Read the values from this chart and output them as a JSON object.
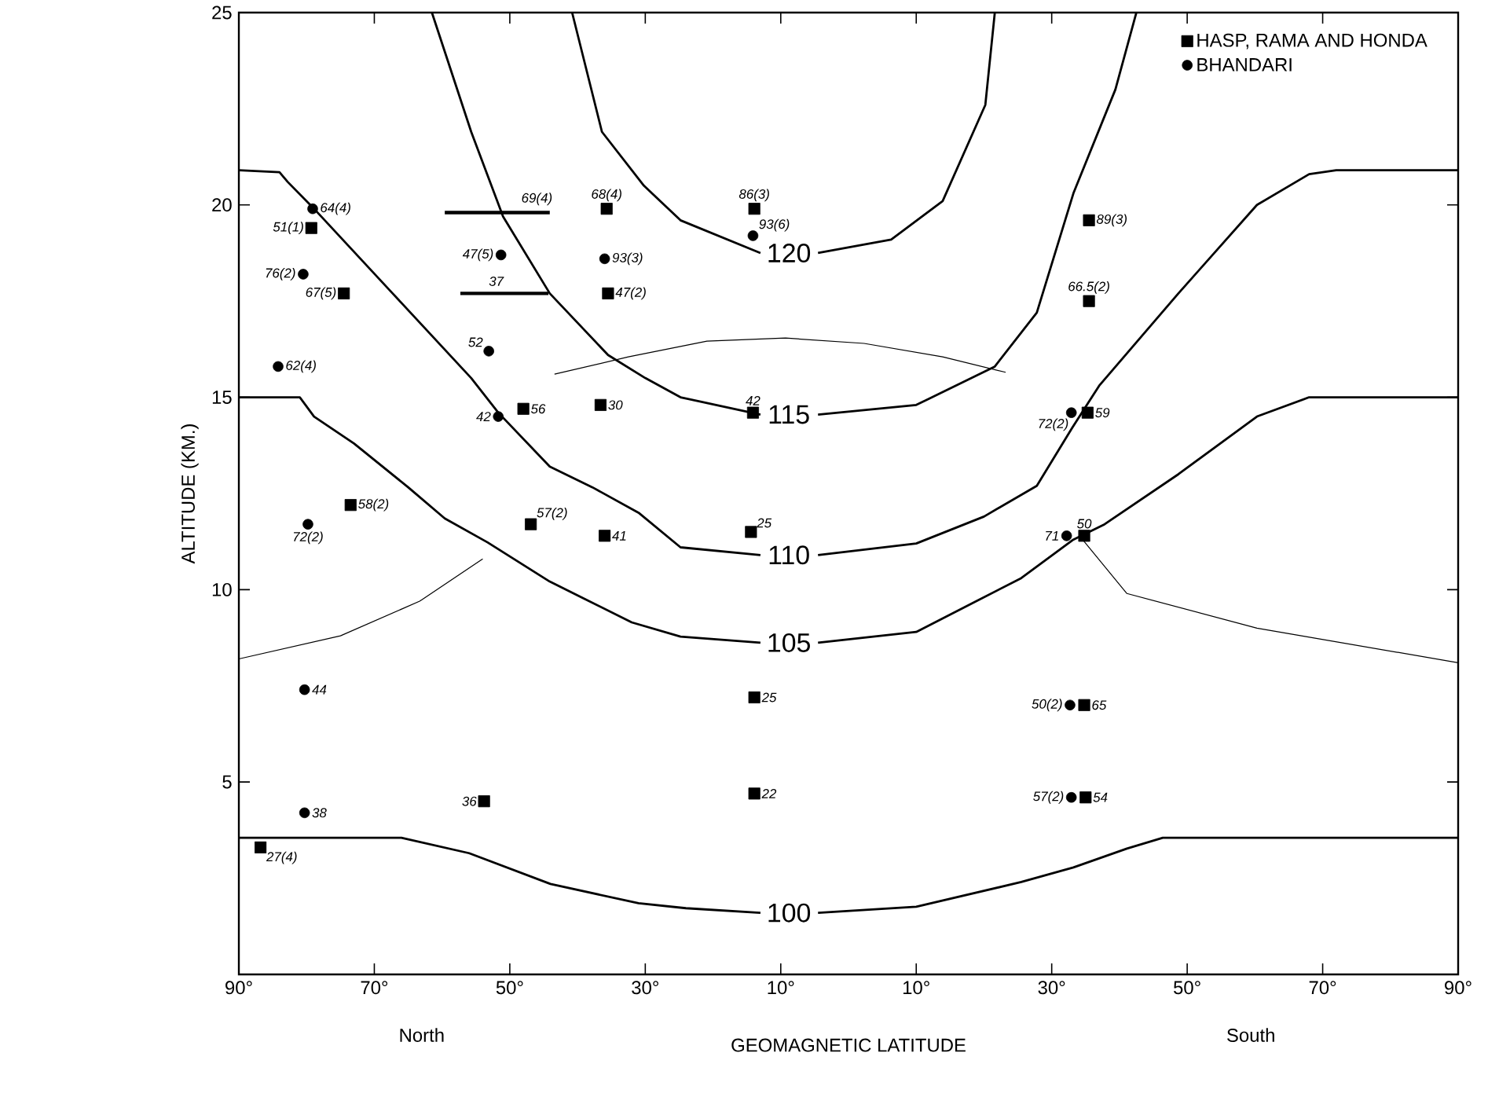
{
  "chart_data": {
    "type": "scatter",
    "xlabel": "GEOMAGNETIC LATITUDE",
    "ylabel": "ALTITUDE (KM.)",
    "xlim": [
      -90,
      90
    ],
    "ylim": [
      0,
      25
    ],
    "xticks": [
      {
        "value": -90,
        "label": "90°"
      },
      {
        "value": -70,
        "label": "70°"
      },
      {
        "value": -50,
        "label": "50°"
      },
      {
        "value": -30,
        "label": "30°"
      },
      {
        "value": -10,
        "label": "10°"
      },
      {
        "value": 10,
        "label": "10°"
      },
      {
        "value": 30,
        "label": "30°"
      },
      {
        "value": 50,
        "label": "50°"
      },
      {
        "value": 70,
        "label": "70°"
      },
      {
        "value": 90,
        "label": "90°"
      }
    ],
    "yticks": [
      5,
      10,
      15,
      20,
      25
    ],
    "legend": "top right",
    "annotations": [
      "100",
      "105",
      "110",
      "115",
      "120",
      {
        "text": "51(1)",
        "x": -79.3,
        "y": 19.4
      },
      {
        "text": "67(5)",
        "x": -74.5,
        "y": 17.7
      },
      {
        "text": "68(4)",
        "x": -35.7,
        "y": 19.9
      },
      {
        "text": "47(2)",
        "x": -35.5,
        "y": 17.7
      },
      {
        "text": "56",
        "x": -48.0,
        "y": 14.7
      },
      {
        "text": "30",
        "x": -36.6,
        "y": 14.8
      },
      {
        "text": "86(3)",
        "x": -13.9,
        "y": 19.9
      },
      {
        "text": "42",
        "x": -14.1,
        "y": 14.6
      },
      {
        "text": "89(3)",
        "x": 35.5,
        "y": 19.6
      },
      {
        "text": "66.5(2)",
        "x": 35.5,
        "y": 17.5
      },
      {
        "text": "59",
        "x": 35.3,
        "y": 14.6
      },
      {
        "text": "58(2)",
        "x": -73.5,
        "y": 12.2
      },
      {
        "text": "57(2)",
        "x": -46.9,
        "y": 11.7
      },
      {
        "text": "41",
        "x": -36.0,
        "y": 11.4
      },
      {
        "text": "27(4)",
        "x": -86.8,
        "y": 3.3
      },
      {
        "text": "36",
        "x": -53.8,
        "y": 4.5
      },
      {
        "text": "25",
        "x": -14.4,
        "y": 11.5
      },
      {
        "text": "25",
        "x": -13.9,
        "y": 7.2
      },
      {
        "text": "22",
        "x": -13.9,
        "y": 4.7
      },
      {
        "text": "50",
        "x": 34.8,
        "y": 11.4
      },
      {
        "text": "65",
        "x": 34.8,
        "y": 7.0
      },
      {
        "text": "54",
        "x": 35.0,
        "y": 4.6
      },
      {
        "text": "64(4)",
        "x": -79.1,
        "y": 19.9
      },
      {
        "text": "76(2)",
        "x": -80.5,
        "y": 18.2
      },
      {
        "text": "47(5)",
        "x": -51.3,
        "y": 18.7
      },
      {
        "text": "93(3)",
        "x": -36.0,
        "y": 18.6
      },
      {
        "text": "52",
        "x": -53.1,
        "y": 16.2
      },
      {
        "text": "62(4)",
        "x": -84.2,
        "y": 15.8
      },
      {
        "text": "42",
        "x": -51.7,
        "y": 14.5
      },
      {
        "text": "93(6)",
        "x": -14.1,
        "y": 19.2
      },
      {
        "text": "72(2)",
        "x": 32.9,
        "y": 14.6
      },
      {
        "text": "72(2)",
        "x": -79.8,
        "y": 11.7
      },
      {
        "text": "44",
        "x": -80.3,
        "y": 7.4
      },
      {
        "text": "38",
        "x": -80.3,
        "y": 4.2
      },
      {
        "text": "71",
        "x": 32.2,
        "y": 11.4
      },
      {
        "text": "50(2)",
        "x": 32.7,
        "y": 7.0
      },
      {
        "text": "57(2)",
        "x": 32.9,
        "y": 4.6
      },
      {
        "text": "69(4)",
        "x": -46,
        "y": 19.8
      },
      {
        "text": "37",
        "x": -52,
        "y": 17.7
      },
      "North",
      "South"
    ],
    "series": [
      {
        "name": "HASP, RAMA AND HONDA",
        "marker": "square",
        "color": "#000000",
        "x": [
          -79.3,
          -74.5,
          -35.7,
          -35.5,
          -48.0,
          -36.6,
          -13.9,
          -14.1,
          35.5,
          35.5,
          35.3,
          -73.5,
          -46.9,
          -36.0,
          -86.8,
          -53.8,
          -14.4,
          -13.9,
          -13.9,
          34.8,
          34.8,
          35.0
        ],
        "values": [
          19.4,
          17.7,
          19.9,
          17.7,
          14.7,
          14.8,
          19.9,
          14.6,
          19.6,
          17.5,
          14.6,
          12.2,
          11.7,
          11.4,
          3.3,
          4.5,
          11.5,
          7.2,
          4.7,
          11.4,
          7.0,
          4.6
        ]
      },
      {
        "name": "BHANDARI",
        "marker": "circle",
        "color": "#000000",
        "x": [
          -79.1,
          -80.5,
          -51.3,
          -36.0,
          -53.1,
          -84.2,
          -51.7,
          -14.1,
          32.9,
          -79.8,
          -80.3,
          -80.3,
          32.2,
          32.7,
          32.9
        ],
        "values": [
          19.9,
          18.2,
          18.7,
          18.6,
          16.2,
          15.8,
          14.5,
          19.2,
          14.6,
          11.7,
          7.4,
          4.2,
          11.4,
          7.0,
          4.6
        ]
      },
      {
        "type": "line",
        "color": "#000000",
        "x": [
          -90,
          -66,
          -56,
          -44,
          -31,
          -24,
          -13,
          -8.8,
          -4.5,
          10,
          25.5,
          33.2,
          41.1,
          46.4,
          90
        ],
        "values": [
          3.55,
          3.55,
          3.15,
          2.35,
          1.85,
          1.72,
          1.6,
          null,
          1.6,
          1.76,
          2.4,
          2.78,
          3.27,
          3.55,
          3.55
        ]
      },
      {
        "type": "line",
        "color": "#000000",
        "x": [
          -90,
          -81,
          -78.9,
          -73,
          -65,
          -59.6,
          -53.3,
          -44.1,
          -32,
          -24.8,
          -13,
          -8.8,
          -4.5,
          10,
          25.5,
          33.2,
          37.8,
          48.7,
          60.3,
          68,
          90
        ],
        "values": [
          15,
          15,
          14.5,
          13.8,
          12.66,
          11.85,
          11.23,
          10.21,
          9.15,
          8.78,
          8.62,
          null,
          8.62,
          8.9,
          10.3,
          11.3,
          11.7,
          13.0,
          14.5,
          15,
          15
        ]
      },
      {
        "type": "line",
        "color": "#000000",
        "x": [
          -90,
          -84,
          -82.8,
          -78.9,
          -67.3,
          -55.7,
          -51.7,
          -44.1,
          -37.8,
          -31,
          -24.8,
          -13,
          -8.8,
          -4.5,
          10,
          20,
          27.8,
          33,
          37,
          48.7,
          60.3,
          68,
          72,
          90
        ],
        "values": [
          20.9,
          20.85,
          20.6,
          19.9,
          17.7,
          15.5,
          14.6,
          13.2,
          12.66,
          12.0,
          11.1,
          10.9,
          null,
          10.9,
          11.2,
          11.9,
          12.7,
          14.2,
          15.3,
          17.7,
          20.0,
          20.8,
          20.9,
          20.9
        ]
      },
      {
        "type": "line",
        "color": "#000000",
        "x": [
          -61.5,
          -55.7,
          -51,
          -44.1,
          -35.5,
          -30,
          -24.8,
          -13,
          -8.8,
          -4.5,
          10,
          21.6,
          27.8,
          33.2,
          39.4,
          42.5
        ],
        "values": [
          25,
          21.9,
          19.7,
          17.7,
          16.1,
          15.5,
          15.0,
          14.55,
          null,
          14.55,
          14.8,
          15.8,
          17.2,
          20.3,
          23.0,
          25
        ]
      },
      {
        "type": "line",
        "color": "#000000",
        "x": [
          -40.8,
          -36.4,
          -30.2,
          -24.8,
          -13,
          -8.8,
          -4.5,
          6.3,
          13.9,
          20.2,
          21.6
        ],
        "values": [
          25,
          21.9,
          20.5,
          19.6,
          18.75,
          null,
          18.75,
          19.1,
          20.1,
          22.6,
          25
        ]
      },
      {
        "type": "line",
        "color": "#000000",
        "x": [
          -43.4,
          -32.5,
          -20.9,
          -9.3,
          2.3,
          13.9,
          23.2
        ],
        "values": [
          15.6,
          16.05,
          16.46,
          16.54,
          16.4,
          16.05,
          15.65
        ]
      },
      {
        "type": "line",
        "color": "#000000",
        "x": [
          -90,
          -75,
          -63.3,
          -54
        ],
        "values": [
          8.2,
          8.8,
          9.7,
          10.8
        ]
      },
      {
        "type": "line",
        "color": "#000000",
        "x": [
          34.1,
          41.1,
          60.3,
          90
        ],
        "values": [
          11.4,
          9.9,
          9.0,
          8.1
        ]
      },
      {
        "type": "line",
        "color": "#000000",
        "x": [
          -59.6,
          -44.1
        ],
        "values": [
          19.8,
          19.8
        ]
      },
      {
        "type": "line",
        "color": "#000000",
        "x": [
          -57.3,
          -44.3
        ],
        "values": [
          17.7,
          17.7
        ]
      }
    ]
  }
}
